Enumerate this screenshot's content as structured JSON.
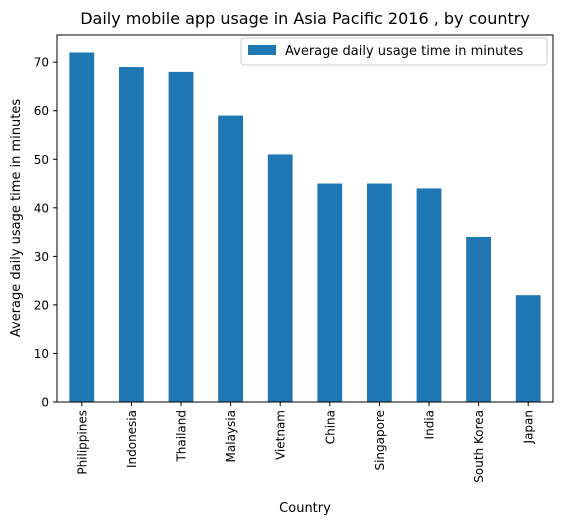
{
  "chart_data": {
    "type": "bar",
    "title": "Daily mobile app usage in Asia Pacific 2016 , by country",
    "xlabel": "Country",
    "ylabel": "Average daily usage time in minutes",
    "categories": [
      "Philippines",
      "Indonesia",
      "Thailand",
      "Malaysia",
      "Vietnam",
      "China",
      "Singapore",
      "India",
      "South Korea",
      "Japan"
    ],
    "series": [
      {
        "name": "Average daily usage time in minutes",
        "values": [
          72,
          69,
          68,
          59,
          51,
          45,
          45,
          44,
          34,
          22
        ],
        "color": "#1f77b4"
      }
    ],
    "yticks": [
      "0",
      "10",
      "20",
      "30",
      "40",
      "50",
      "60",
      "70"
    ],
    "ylim": [
      0,
      75.6
    ],
    "grid": false,
    "legend_position": "top-right"
  }
}
